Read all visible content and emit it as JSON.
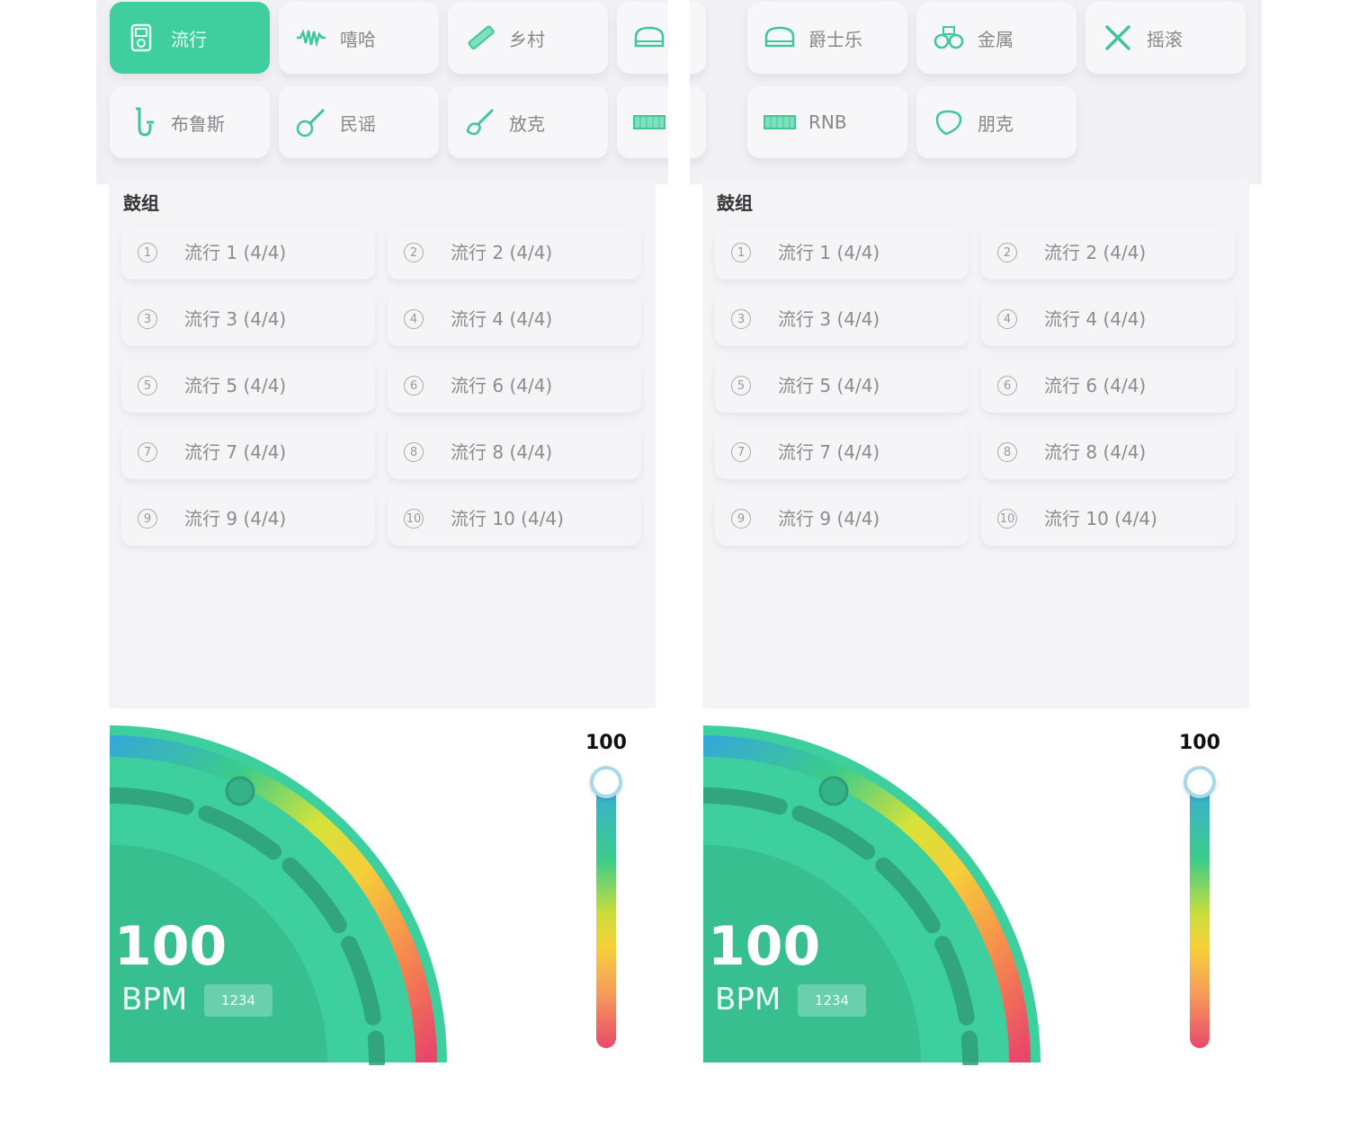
{
  "left": {
    "genres": [
      {
        "label": "流行",
        "icon": "music-player-icon",
        "active": true
      },
      {
        "label": "嘻哈",
        "icon": "waveform-icon",
        "active": false
      },
      {
        "label": "乡村",
        "icon": "harmonica-icon",
        "active": false
      },
      {
        "label": "",
        "icon": "piano-icon",
        "active": false
      },
      {
        "label": "布鲁斯",
        "icon": "saxophone-icon",
        "active": false
      },
      {
        "label": "民谣",
        "icon": "guitar-icon",
        "active": false
      },
      {
        "label": "放克",
        "icon": "electric-guitar-icon",
        "active": false
      },
      {
        "label": "",
        "icon": "keyboard-icon",
        "active": false
      }
    ],
    "section_title": "鼓组",
    "drum_items": [
      {
        "num": "1",
        "label": "流行 1 (4/4)"
      },
      {
        "num": "2",
        "label": "流行 2 (4/4)"
      },
      {
        "num": "3",
        "label": "流行 3 (4/4)"
      },
      {
        "num": "4",
        "label": "流行 4 (4/4)"
      },
      {
        "num": "5",
        "label": "流行 5 (4/4)"
      },
      {
        "num": "6",
        "label": "流行 6 (4/4)"
      },
      {
        "num": "7",
        "label": "流行 7 (4/4)"
      },
      {
        "num": "8",
        "label": "流行 8 (4/4)"
      },
      {
        "num": "9",
        "label": "流行 9 (4/4)"
      },
      {
        "num": "10",
        "label": "流行 10 (4/4)"
      }
    ],
    "bpm_value": "100",
    "bpm_unit": "BPM",
    "bpm_tag": "1234",
    "slider_value": "100"
  },
  "right": {
    "genres": [
      {
        "label": "",
        "icon": "",
        "active": false
      },
      {
        "label": "爵士乐",
        "icon": "piano-icon",
        "active": false
      },
      {
        "label": "金属",
        "icon": "drum-kit-icon",
        "active": false
      },
      {
        "label": "摇滚",
        "icon": "crossed-sticks-icon",
        "active": false
      },
      {
        "label": "",
        "icon": "",
        "active": false
      },
      {
        "label": "RNB",
        "icon": "keyboard-icon",
        "active": false
      },
      {
        "label": "朋克",
        "icon": "guitar-pick-icon",
        "active": false
      }
    ],
    "section_title": "鼓组",
    "drum_items": [
      {
        "num": "1",
        "label": "流行 1 (4/4)"
      },
      {
        "num": "2",
        "label": "流行 2 (4/4)"
      },
      {
        "num": "3",
        "label": "流行 3 (4/4)"
      },
      {
        "num": "4",
        "label": "流行 4 (4/4)"
      },
      {
        "num": "5",
        "label": "流行 5 (4/4)"
      },
      {
        "num": "6",
        "label": "流行 6 (4/4)"
      },
      {
        "num": "7",
        "label": "流行 7 (4/4)"
      },
      {
        "num": "8",
        "label": "流行 8 (4/4)"
      },
      {
        "num": "9",
        "label": "流行 9 (4/4)"
      },
      {
        "num": "10",
        "label": "流行 10 (4/4)"
      }
    ],
    "bpm_value": "100",
    "bpm_unit": "BPM",
    "bpm_tag": "1234",
    "slider_value": "100"
  },
  "colors": {
    "accent": "#3fcf9f",
    "icon": "#3fc79a"
  }
}
